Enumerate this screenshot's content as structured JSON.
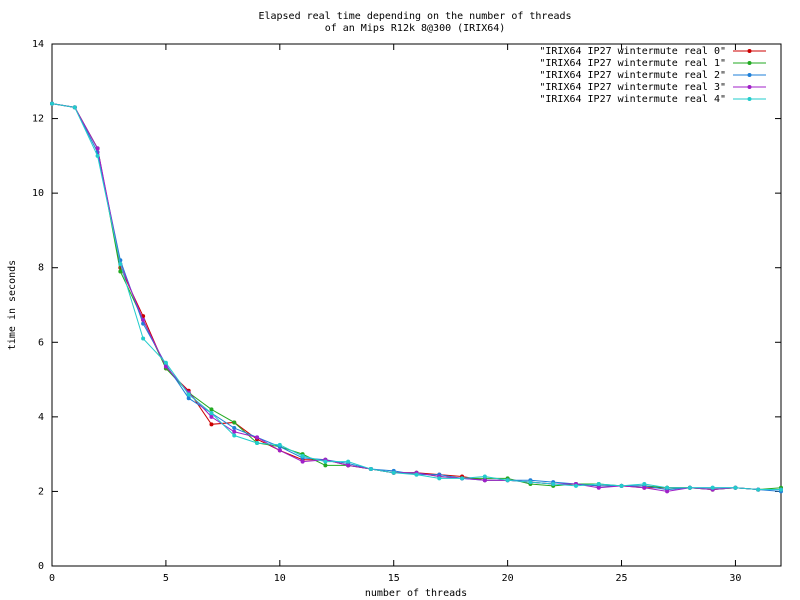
{
  "chart_data": {
    "type": "line",
    "title": [
      "Elapsed real time depending on the number of threads",
      "of an Mips R12k 8@300 (IRIX64)"
    ],
    "x_label": "number of threads",
    "y_label": "time in seconds",
    "x": [
      0,
      1,
      2,
      3,
      4,
      5,
      6,
      7,
      8,
      9,
      10,
      11,
      12,
      13,
      14,
      15,
      16,
      17,
      18,
      19,
      20,
      21,
      22,
      23,
      24,
      25,
      26,
      27,
      28,
      29,
      30,
      31,
      32
    ],
    "xlim": [
      0,
      32
    ],
    "xticks": [
      0,
      5,
      10,
      15,
      20,
      25,
      30
    ],
    "ylim": [
      0,
      14
    ],
    "yticks": [
      0,
      2,
      4,
      6,
      8,
      10,
      12,
      14
    ],
    "legend": "upper right",
    "series": [
      {
        "name": "\"IRIX64 IP27 wintermute real 0\"",
        "color": "#cc0000",
        "values": [
          12.4,
          12.3,
          11.2,
          8.0,
          6.7,
          5.3,
          4.7,
          3.8,
          3.85,
          3.4,
          3.1,
          2.85,
          2.85,
          2.7,
          2.6,
          2.5,
          2.5,
          2.45,
          2.4,
          2.3,
          2.3,
          2.25,
          2.2,
          2.2,
          2.15,
          2.15,
          2.1,
          2.1,
          2.1,
          2.05,
          2.1,
          2.05,
          2.05
        ]
      },
      {
        "name": "\"IRIX64 IP27 wintermute real 1\"",
        "color": "#22aa22",
        "values": [
          12.4,
          12.3,
          11.2,
          7.9,
          6.6,
          5.3,
          4.65,
          4.2,
          3.85,
          3.3,
          3.2,
          3.0,
          2.7,
          2.7,
          2.6,
          2.5,
          2.5,
          2.4,
          2.35,
          2.35,
          2.35,
          2.2,
          2.15,
          2.2,
          2.2,
          2.15,
          2.15,
          2.1,
          2.1,
          2.05,
          2.1,
          2.05,
          2.1
        ]
      },
      {
        "name": "\"IRIX64 IP27 wintermute real 2\"",
        "color": "#1e7fd8",
        "values": [
          12.4,
          12.3,
          11.1,
          8.2,
          6.5,
          5.4,
          4.5,
          4.1,
          3.7,
          3.45,
          3.2,
          2.9,
          2.85,
          2.75,
          2.6,
          2.55,
          2.45,
          2.45,
          2.35,
          2.3,
          2.3,
          2.3,
          2.25,
          2.2,
          2.15,
          2.15,
          2.15,
          2.05,
          2.1,
          2.1,
          2.1,
          2.05,
          2.0
        ]
      },
      {
        "name": "\"IRIX64 IP27 wintermute real 3\"",
        "color": "#a020c8",
        "values": [
          12.4,
          12.3,
          11.2,
          8.1,
          6.6,
          5.35,
          4.65,
          4.0,
          3.6,
          3.45,
          3.1,
          2.8,
          2.85,
          2.7,
          2.6,
          2.5,
          2.5,
          2.4,
          2.35,
          2.3,
          2.3,
          2.25,
          2.2,
          2.2,
          2.1,
          2.15,
          2.1,
          2.0,
          2.1,
          2.05,
          2.1,
          2.05,
          2.05
        ]
      },
      {
        "name": "\"IRIX64 IP27 wintermute real 4\"",
        "color": "#22cccc",
        "values": [
          12.4,
          12.3,
          11.0,
          8.1,
          6.1,
          5.45,
          4.6,
          4.1,
          3.5,
          3.3,
          3.25,
          2.95,
          2.8,
          2.8,
          2.6,
          2.5,
          2.45,
          2.35,
          2.35,
          2.4,
          2.3,
          2.25,
          2.2,
          2.15,
          2.2,
          2.15,
          2.2,
          2.1,
          2.1,
          2.1,
          2.1,
          2.05,
          2.05
        ]
      }
    ]
  }
}
